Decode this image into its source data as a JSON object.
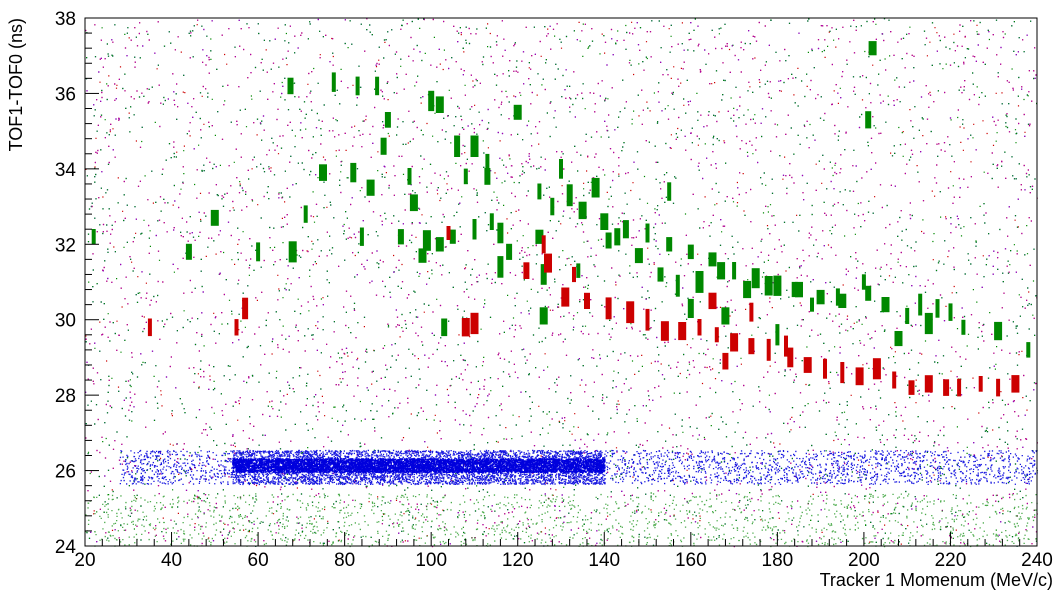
{
  "chart_data": {
    "type": "scatter",
    "title": "",
    "xlabel": "Tracker 1 Momenum (MeV/c)",
    "ylabel": "TOF1-TOF0 (ns)",
    "xlim": [
      20,
      240
    ],
    "ylim": [
      24,
      38
    ],
    "x_ticks": [
      "20",
      "40",
      "60",
      "80",
      "100",
      "120",
      "140",
      "160",
      "180",
      "200",
      "220",
      "240"
    ],
    "y_ticks": [
      "24",
      "26",
      "28",
      "30",
      "32",
      "34",
      "36",
      "38"
    ],
    "grid": false,
    "legend": "none",
    "series": [
      {
        "color": "#008800",
        "marker": "vertical-bar",
        "description_points": [
          [
            67.5,
            36.2
          ],
          [
            77.5,
            36.3
          ],
          [
            83,
            36.2
          ],
          [
            87.5,
            36.2
          ],
          [
            102,
            35.7
          ],
          [
            100,
            35.8
          ],
          [
            110,
            34.6
          ],
          [
            106,
            34.6
          ],
          [
            113,
            34.2
          ],
          [
            120,
            35.5
          ],
          [
            113,
            33.8
          ],
          [
            108,
            33.8
          ],
          [
            125,
            33.4
          ],
          [
            128,
            33.0
          ],
          [
            132,
            33.3
          ],
          [
            135,
            32.9
          ],
          [
            140,
            32.6
          ],
          [
            145,
            32.4
          ],
          [
            150,
            32.3
          ],
          [
            155,
            32.0
          ],
          [
            160,
            31.8
          ],
          [
            165,
            31.6
          ],
          [
            170,
            31.3
          ],
          [
            175,
            31.1
          ],
          [
            180,
            30.9
          ],
          [
            185,
            30.8
          ],
          [
            190,
            30.6
          ],
          [
            195,
            30.5
          ],
          [
            200,
            31.0
          ],
          [
            205,
            30.4
          ],
          [
            210,
            30.1
          ],
          [
            215,
            29.9
          ],
          [
            220,
            30.2
          ],
          [
            223,
            29.8
          ],
          [
            231,
            29.7
          ],
          [
            238,
            29.2
          ],
          [
            50,
            32.7
          ],
          [
            60,
            31.8
          ],
          [
            68,
            31.8
          ],
          [
            71,
            32.8
          ],
          [
            75,
            33.9
          ],
          [
            82,
            33.9
          ],
          [
            86,
            33.5
          ],
          [
            84,
            32.2
          ],
          [
            93,
            32.2
          ],
          [
            98,
            31.7
          ],
          [
            102,
            32.0
          ],
          [
            105,
            32.2
          ],
          [
            110,
            32.4
          ],
          [
            116,
            32.3
          ],
          [
            118,
            31.8
          ],
          [
            125,
            32.2
          ],
          [
            126,
            31.2
          ],
          [
            134,
            31.3
          ],
          [
            143,
            32.2
          ],
          [
            148,
            31.7
          ],
          [
            153,
            31.2
          ],
          [
            157,
            30.9
          ],
          [
            162,
            31.0
          ],
          [
            167,
            31.3
          ],
          [
            173,
            30.8
          ],
          [
            178,
            30.9
          ],
          [
            184,
            30.8
          ],
          [
            188,
            30.4
          ],
          [
            194,
            30.6
          ],
          [
            201,
            30.7
          ],
          [
            202,
            37.2
          ],
          [
            201,
            35.3
          ],
          [
            217,
            30.3
          ],
          [
            130,
            34.0
          ],
          [
            141,
            32.1
          ],
          [
            155,
            33.4
          ],
          [
            44,
            31.8
          ],
          [
            22,
            32.2
          ],
          [
            103,
            29.8
          ],
          [
            116,
            31.4
          ],
          [
            126,
            30.1
          ],
          [
            138,
            33.5
          ],
          [
            160,
            30.3
          ],
          [
            168,
            30.1
          ],
          [
            180,
            29.6
          ],
          [
            208,
            29.5
          ],
          [
            213,
            30.4
          ],
          [
            95,
            33.8
          ],
          [
            90,
            35.3
          ],
          [
            89,
            34.6
          ],
          [
            96,
            33.1
          ],
          [
            99,
            32.1
          ],
          [
            114,
            32.6
          ]
        ]
      },
      {
        "color": "#cc0000",
        "marker": "vertical-bar",
        "description_points": [
          [
            35,
            29.8
          ],
          [
            55,
            29.8
          ],
          [
            57,
            30.3
          ],
          [
            104,
            32.3
          ],
          [
            108,
            29.8
          ],
          [
            110,
            29.9
          ],
          [
            122,
            31.3
          ],
          [
            127,
            31.5
          ],
          [
            133,
            31.2
          ],
          [
            136,
            30.5
          ],
          [
            141,
            30.3
          ],
          [
            146,
            30.2
          ],
          [
            150,
            30.0
          ],
          [
            154,
            29.7
          ],
          [
            158,
            29.7
          ],
          [
            162,
            29.8
          ],
          [
            166,
            29.6
          ],
          [
            170,
            29.4
          ],
          [
            174,
            29.3
          ],
          [
            178,
            29.2
          ],
          [
            183,
            29.0
          ],
          [
            187,
            28.8
          ],
          [
            191,
            28.7
          ],
          [
            195,
            28.6
          ],
          [
            199,
            28.5
          ],
          [
            203,
            28.7
          ],
          [
            207,
            28.4
          ],
          [
            211,
            28.2
          ],
          [
            215,
            28.3
          ],
          [
            219,
            28.2
          ],
          [
            222,
            28.2
          ],
          [
            227,
            28.3
          ],
          [
            231,
            28.2
          ],
          [
            235,
            28.3
          ],
          [
            174,
            30.2
          ],
          [
            165,
            30.5
          ],
          [
            126,
            32.0
          ],
          [
            131,
            30.6
          ],
          [
            168,
            28.9
          ],
          [
            182,
            29.3
          ]
        ]
      },
      {
        "color": "#0000dd",
        "marker": "dots",
        "description_band": {
          "x_from": 28,
          "x_to": 240,
          "y_center": 26.1,
          "y_half_width": 0.45,
          "dense_x_from": 54,
          "dense_x_to": 140
        }
      },
      {
        "color": "#008800",
        "marker": "dots",
        "description_band": {
          "x_from": 20,
          "x_to": 240,
          "y_center": 24.7,
          "y_half_width": 0.7
        }
      }
    ],
    "background_noise": {
      "colors": [
        "#0000dd",
        "#cc0000",
        "#008800",
        "#aa00aa"
      ],
      "density": "uniform sparse dots across the whole frame"
    }
  }
}
